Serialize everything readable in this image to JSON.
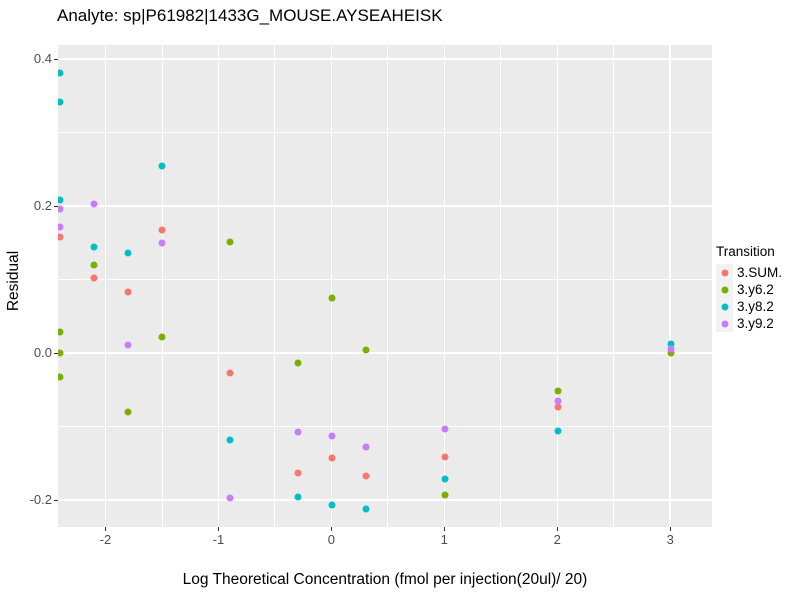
{
  "chart_data": {
    "type": "scatter",
    "title": "Analyte: sp|P61982|1433G_MOUSE.AYSEAHEISK",
    "xlabel": "Log Theoretical Concentration (fmol per injection(20ul)/ 20)",
    "ylabel": "Residual",
    "legend": {
      "title": "Transition",
      "position": "right"
    },
    "xlim": [
      -2.42,
      3.37
    ],
    "ylim": [
      -0.237,
      0.419
    ],
    "grid": "white major and minor gridlines on gray panel",
    "panel_bg": "#EBEBEB",
    "grid_color": "#FFFFFF",
    "tick_label_color": "#4D4D4D",
    "x_ticks": [
      {
        "v": -2,
        "label": "-2"
      },
      {
        "v": -1,
        "label": "-1"
      },
      {
        "v": 0,
        "label": "0"
      },
      {
        "v": 1,
        "label": "1"
      },
      {
        "v": 2,
        "label": "2"
      },
      {
        "v": 3,
        "label": "3"
      }
    ],
    "y_ticks": [
      {
        "v": 0.4,
        "label": "0.4"
      },
      {
        "v": 0.2,
        "label": "0.2"
      },
      {
        "v": 0.0,
        "label": "0.0"
      },
      {
        "v": -0.2,
        "label": "-0.2"
      }
    ],
    "series": [
      {
        "name": "3.SUM.",
        "color": "#F8766D",
        "points": [
          [
            -2.398,
            0.158
          ],
          [
            -2.097,
            0.102
          ],
          [
            -1.796,
            0.083
          ],
          [
            -1.495,
            0.167
          ],
          [
            -0.893,
            -0.027
          ],
          [
            -0.292,
            -0.164
          ],
          [
            0.01,
            -0.143
          ],
          [
            0.311,
            -0.167
          ],
          [
            1.01,
            -0.142
          ],
          [
            2.01,
            -0.073
          ]
        ]
      },
      {
        "name": "3.y6.2",
        "color": "#7CAE00",
        "points": [
          [
            -2.398,
            0.029
          ],
          [
            -2.398,
            0.0
          ],
          [
            -2.398,
            -0.033
          ],
          [
            -2.097,
            0.12
          ],
          [
            -1.796,
            -0.08
          ],
          [
            -1.495,
            0.022
          ],
          [
            -0.893,
            0.151
          ],
          [
            -0.292,
            -0.014
          ],
          [
            0.01,
            0.075
          ],
          [
            0.311,
            0.004
          ],
          [
            1.01,
            -0.193
          ],
          [
            2.01,
            -0.052
          ],
          [
            3.01,
            0.0
          ]
        ]
      },
      {
        "name": "3.y8.2",
        "color": "#00BFC4",
        "points": [
          [
            -2.398,
            0.381
          ],
          [
            -2.398,
            0.341
          ],
          [
            -2.398,
            0.208
          ],
          [
            -2.097,
            0.144
          ],
          [
            -1.796,
            0.136
          ],
          [
            -1.495,
            0.255
          ],
          [
            -0.893,
            -0.119
          ],
          [
            -0.292,
            -0.196
          ],
          [
            0.01,
            -0.207
          ],
          [
            0.311,
            -0.212
          ],
          [
            1.01,
            -0.172
          ],
          [
            2.01,
            -0.106
          ],
          [
            3.01,
            0.012
          ]
        ]
      },
      {
        "name": "3.y9.2",
        "color": "#C77CFF",
        "points": [
          [
            -2.398,
            0.196
          ],
          [
            -2.398,
            0.171
          ],
          [
            -2.097,
            0.203
          ],
          [
            -1.796,
            0.011
          ],
          [
            -1.495,
            0.15
          ],
          [
            -0.893,
            -0.197
          ],
          [
            -0.292,
            -0.108
          ],
          [
            0.01,
            -0.113
          ],
          [
            0.311,
            -0.128
          ],
          [
            1.01,
            -0.104
          ],
          [
            2.01,
            -0.065
          ],
          [
            3.01,
            0.005
          ]
        ]
      }
    ]
  }
}
